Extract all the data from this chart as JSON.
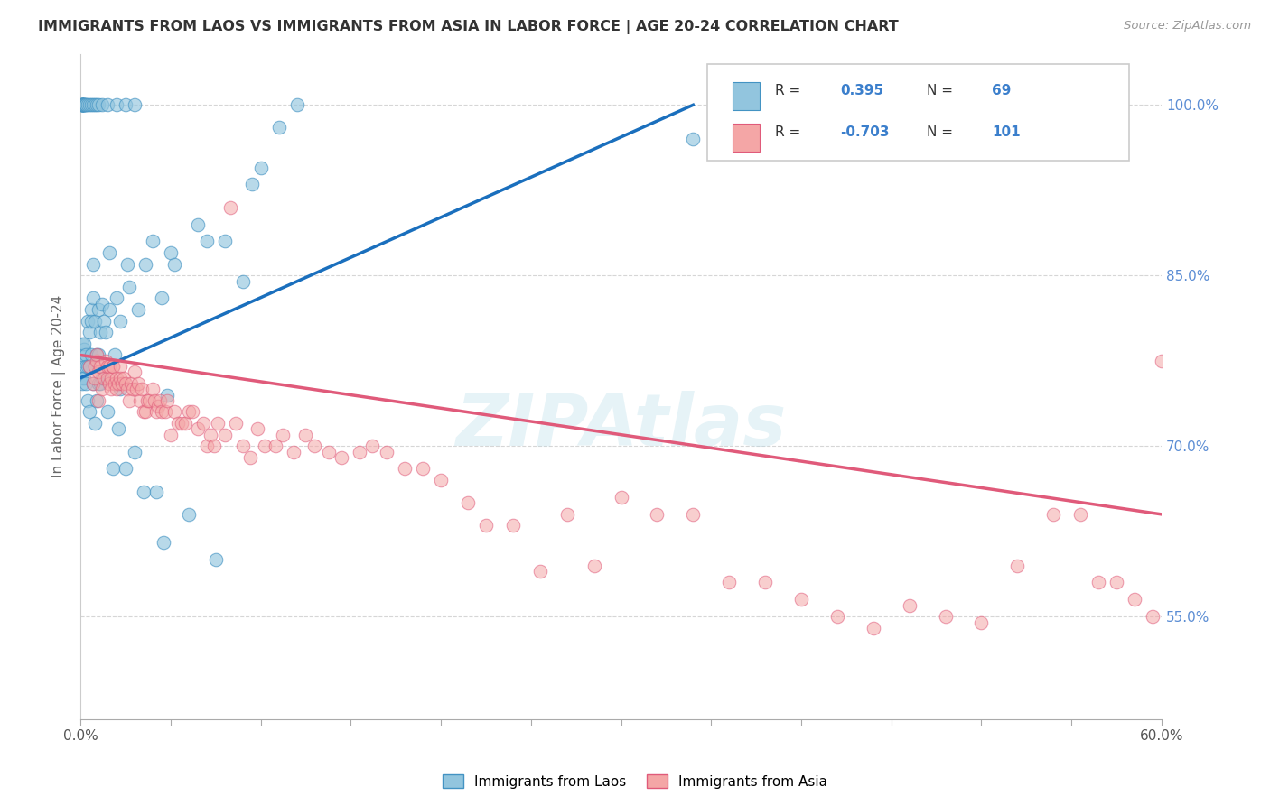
{
  "title": "IMMIGRANTS FROM LAOS VS IMMIGRANTS FROM ASIA IN LABOR FORCE | AGE 20-24 CORRELATION CHART",
  "source": "Source: ZipAtlas.com",
  "ylabel": "In Labor Force | Age 20-24",
  "legend_laos": "Immigrants from Laos",
  "legend_asia": "Immigrants from Asia",
  "R_laos": 0.395,
  "N_laos": 69,
  "R_asia": -0.703,
  "N_asia": 101,
  "xmin": 0.0,
  "xmax": 0.6,
  "ymin": 0.46,
  "ymax": 1.045,
  "yticks": [
    0.55,
    0.7,
    0.85,
    1.0
  ],
  "xtick_minor": [
    0.05,
    0.1,
    0.15,
    0.2,
    0.25,
    0.3,
    0.35,
    0.4,
    0.45,
    0.5,
    0.55
  ],
  "color_laos": "#92c5de",
  "color_laos_edge": "#4393c3",
  "color_asia": "#f4a6a6",
  "color_asia_edge": "#e05a7a",
  "trendline_laos": "#1a6fbd",
  "trendline_asia": "#e05a7a",
  "background": "#ffffff",
  "watermark": "ZIPAtlas",
  "laos_scatter_x": [
    0.001,
    0.001,
    0.001,
    0.001,
    0.001,
    0.001,
    0.002,
    0.002,
    0.002,
    0.002,
    0.003,
    0.003,
    0.003,
    0.004,
    0.004,
    0.004,
    0.005,
    0.005,
    0.005,
    0.006,
    0.006,
    0.006,
    0.007,
    0.007,
    0.007,
    0.008,
    0.008,
    0.009,
    0.009,
    0.01,
    0.01,
    0.01,
    0.011,
    0.011,
    0.012,
    0.012,
    0.013,
    0.014,
    0.015,
    0.016,
    0.016,
    0.018,
    0.019,
    0.02,
    0.021,
    0.022,
    0.022,
    0.025,
    0.026,
    0.027,
    0.03,
    0.032,
    0.035,
    0.036,
    0.04,
    0.042,
    0.045,
    0.046,
    0.048,
    0.05,
    0.052,
    0.06,
    0.065,
    0.07,
    0.075,
    0.08,
    0.09,
    0.095,
    0.1,
    0.11,
    0.12
  ],
  "laos_scatter_y": [
    0.775,
    0.78,
    0.76,
    0.755,
    0.79,
    1.0,
    0.76,
    0.785,
    0.79,
    1.0,
    0.755,
    0.78,
    0.77,
    0.74,
    0.77,
    0.81,
    0.73,
    0.77,
    0.8,
    0.82,
    0.81,
    0.78,
    0.755,
    0.83,
    0.86,
    0.72,
    0.81,
    0.74,
    0.78,
    0.755,
    0.78,
    0.82,
    0.755,
    0.8,
    0.76,
    0.825,
    0.81,
    0.8,
    0.73,
    0.82,
    0.87,
    0.68,
    0.78,
    0.83,
    0.715,
    0.81,
    0.75,
    0.68,
    0.86,
    0.84,
    0.695,
    0.82,
    0.66,
    0.86,
    0.88,
    0.66,
    0.83,
    0.615,
    0.745,
    0.87,
    0.86,
    0.64,
    0.895,
    0.88,
    0.6,
    0.88,
    0.845,
    0.93,
    0.945,
    0.98,
    1.0
  ],
  "laos_top_x": [
    0.001,
    0.001,
    0.001,
    0.001,
    0.001,
    0.001,
    0.001,
    0.002,
    0.002,
    0.002,
    0.003,
    0.003,
    0.004,
    0.005,
    0.006,
    0.007,
    0.008,
    0.009,
    0.01,
    0.012,
    0.015,
    0.02,
    0.025,
    0.03,
    0.34
  ],
  "laos_top_y": [
    1.0,
    1.0,
    1.0,
    1.0,
    1.0,
    1.0,
    1.0,
    1.0,
    1.0,
    1.0,
    1.0,
    1.0,
    1.0,
    1.0,
    1.0,
    1.0,
    1.0,
    1.0,
    1.0,
    1.0,
    1.0,
    1.0,
    1.0,
    1.0,
    0.97
  ],
  "asia_scatter_x": [
    0.005,
    0.007,
    0.008,
    0.008,
    0.009,
    0.009,
    0.01,
    0.01,
    0.011,
    0.012,
    0.013,
    0.014,
    0.015,
    0.015,
    0.016,
    0.016,
    0.017,
    0.017,
    0.018,
    0.018,
    0.019,
    0.02,
    0.02,
    0.021,
    0.022,
    0.022,
    0.023,
    0.024,
    0.025,
    0.026,
    0.027,
    0.028,
    0.029,
    0.03,
    0.031,
    0.032,
    0.033,
    0.034,
    0.035,
    0.036,
    0.037,
    0.038,
    0.04,
    0.041,
    0.042,
    0.043,
    0.044,
    0.045,
    0.047,
    0.048,
    0.05,
    0.052,
    0.054,
    0.056,
    0.058,
    0.06,
    0.062,
    0.065,
    0.068,
    0.07,
    0.072,
    0.074,
    0.076,
    0.08,
    0.083,
    0.086,
    0.09,
    0.094,
    0.098,
    0.102,
    0.108,
    0.112,
    0.118,
    0.125,
    0.13,
    0.138,
    0.145,
    0.155,
    0.162,
    0.17,
    0.18,
    0.19,
    0.2,
    0.215,
    0.225,
    0.24,
    0.255,
    0.27,
    0.285,
    0.3,
    0.32,
    0.34,
    0.36,
    0.38,
    0.4,
    0.42,
    0.44,
    0.46,
    0.48,
    0.5,
    0.52,
    0.54,
    0.555,
    0.565,
    0.575,
    0.585,
    0.595,
    0.6
  ],
  "asia_scatter_y": [
    0.77,
    0.755,
    0.77,
    0.76,
    0.775,
    0.78,
    0.765,
    0.74,
    0.77,
    0.75,
    0.76,
    0.775,
    0.76,
    0.77,
    0.77,
    0.755,
    0.76,
    0.75,
    0.77,
    0.77,
    0.755,
    0.75,
    0.76,
    0.755,
    0.77,
    0.76,
    0.755,
    0.76,
    0.755,
    0.75,
    0.74,
    0.755,
    0.75,
    0.765,
    0.75,
    0.755,
    0.74,
    0.75,
    0.73,
    0.73,
    0.74,
    0.74,
    0.75,
    0.74,
    0.73,
    0.735,
    0.74,
    0.73,
    0.73,
    0.74,
    0.71,
    0.73,
    0.72,
    0.72,
    0.72,
    0.73,
    0.73,
    0.715,
    0.72,
    0.7,
    0.71,
    0.7,
    0.72,
    0.71,
    0.91,
    0.72,
    0.7,
    0.69,
    0.715,
    0.7,
    0.7,
    0.71,
    0.695,
    0.71,
    0.7,
    0.695,
    0.69,
    0.695,
    0.7,
    0.695,
    0.68,
    0.68,
    0.67,
    0.65,
    0.63,
    0.63,
    0.59,
    0.64,
    0.595,
    0.655,
    0.64,
    0.64,
    0.58,
    0.58,
    0.565,
    0.55,
    0.54,
    0.56,
    0.55,
    0.545,
    0.595,
    0.64,
    0.64,
    0.58,
    0.58,
    0.565,
    0.55,
    0.775
  ],
  "trend_laos_x0": 0.0,
  "trend_laos_x1": 0.34,
  "trend_laos_y0": 0.76,
  "trend_laos_y1": 1.0,
  "trend_asia_x0": 0.0,
  "trend_asia_x1": 0.6,
  "trend_asia_y0": 0.78,
  "trend_asia_y1": 0.64
}
